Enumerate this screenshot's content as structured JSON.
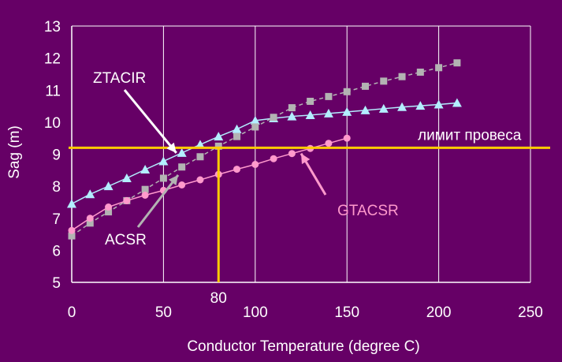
{
  "chart_data": {
    "type": "line",
    "title": "",
    "xlabel": "Conductor Temperature (degree C)",
    "ylabel": "Sag (m)",
    "xlim": [
      0,
      250
    ],
    "ylim": [
      5,
      13
    ],
    "xticks": [
      0,
      50,
      100,
      150,
      200,
      250
    ],
    "yticks": [
      5,
      6,
      7,
      8,
      9,
      10,
      11,
      12,
      13
    ],
    "grid": "vertical-only",
    "legend": "none",
    "series": [
      {
        "name": "ZTACIR",
        "marker": "triangle",
        "color": "#b3eeff",
        "x": [
          0,
          10,
          20,
          30,
          40,
          50,
          60,
          70,
          80,
          90,
          100,
          110,
          120,
          130,
          140,
          150,
          160,
          170,
          180,
          190,
          200,
          210
        ],
        "y": [
          7.45,
          7.75,
          8.0,
          8.25,
          8.52,
          8.78,
          9.04,
          9.3,
          9.55,
          9.78,
          10.05,
          10.12,
          10.18,
          10.22,
          10.27,
          10.32,
          10.37,
          10.42,
          10.47,
          10.51,
          10.55,
          10.6
        ]
      },
      {
        "name": "ACSR",
        "marker": "square",
        "color": "#b3b3b3",
        "x": [
          0,
          10,
          20,
          30,
          40,
          50,
          60,
          70,
          80,
          90,
          100,
          110,
          120,
          130,
          140,
          150,
          160,
          170,
          180,
          190,
          200,
          210
        ],
        "y": [
          6.45,
          6.85,
          7.2,
          7.55,
          7.9,
          8.25,
          8.6,
          8.92,
          9.25,
          9.55,
          9.85,
          10.15,
          10.45,
          10.65,
          10.8,
          10.95,
          11.12,
          11.28,
          11.42,
          11.56,
          11.7,
          11.85
        ]
      },
      {
        "name": "GTACSR",
        "marker": "circle",
        "color": "#ff99cc",
        "x": [
          0,
          10,
          20,
          30,
          40,
          50,
          60,
          70,
          80,
          90,
          100,
          110,
          120,
          130,
          140,
          150
        ],
        "y": [
          6.62,
          7.0,
          7.35,
          7.55,
          7.72,
          7.87,
          8.04,
          8.2,
          8.37,
          8.53,
          8.68,
          8.86,
          9.02,
          9.18,
          9.34,
          9.5
        ]
      }
    ],
    "reference_lines": {
      "sag_limit": {
        "y": 9.2,
        "label": "лимит провеса",
        "color": "#ffcc00"
      },
      "temp_marker": {
        "x": 80,
        "label": "80",
        "color": "#ffcc00"
      }
    },
    "annotations": [
      {
        "text": "ZTACIR",
        "color": "#ffffff",
        "points_to": [
          57,
          9.04
        ]
      },
      {
        "text": "ACSR",
        "color": "#ffffff",
        "points_to": [
          58,
          8.35
        ]
      },
      {
        "text": "GTACSR",
        "color": "#ff99cc",
        "points_to": [
          125,
          9.02
        ]
      }
    ]
  }
}
